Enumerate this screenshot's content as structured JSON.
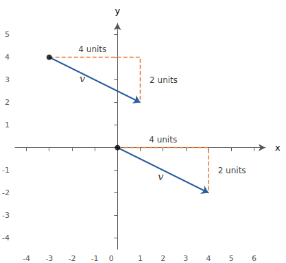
{
  "chart_data": {
    "type": "vector",
    "xlabel": "x",
    "ylabel": "y",
    "xlim": [
      -4.5,
      6.5
    ],
    "ylim": [
      -4.5,
      5.5
    ],
    "xticks": [
      -4,
      -3,
      -2,
      -1,
      0,
      1,
      2,
      3,
      4,
      5,
      6
    ],
    "yticks": [
      -4,
      -3,
      -2,
      -1,
      1,
      2,
      3,
      4,
      5
    ],
    "grid": false,
    "vectors": [
      {
        "name": "v",
        "name_at": [
          1.9,
          -1.3
        ],
        "start": [
          0,
          0
        ],
        "end": [
          4,
          -2
        ],
        "color": "#2B5F9E",
        "start_point": {
          "color": "#000000",
          "marker": "circle"
        },
        "components": {
          "path": [
            [
              0,
              0
            ],
            [
              4,
              0
            ],
            [
              4,
              -2
            ]
          ],
          "color": "#E8732A",
          "line_style": "dashed",
          "horizontal_label": {
            "text": "4 units",
            "at": [
              2.0,
              0.12
            ]
          },
          "vertical_label": {
            "text": "2 units",
            "at": [
              4.35,
              -1.0
            ]
          }
        }
      },
      {
        "name": "v",
        "name_at": [
          -1.55,
          3.05
        ],
        "start": [
          -3,
          4
        ],
        "end": [
          1,
          2
        ],
        "color": "#2B5F9E",
        "start_point": {
          "color": "#000000",
          "marker": "circle"
        },
        "components": {
          "path": [
            [
              -3,
              4
            ],
            [
              1,
              4
            ],
            [
              1,
              2
            ]
          ],
          "color": "#E8732A",
          "line_style": "dashed",
          "horizontal_label": {
            "text": "4 units",
            "at": [
              -1.1,
              4.12
            ]
          },
          "vertical_label": {
            "text": "2 units",
            "at": [
              1.35,
              3.0
            ]
          }
        }
      }
    ]
  }
}
